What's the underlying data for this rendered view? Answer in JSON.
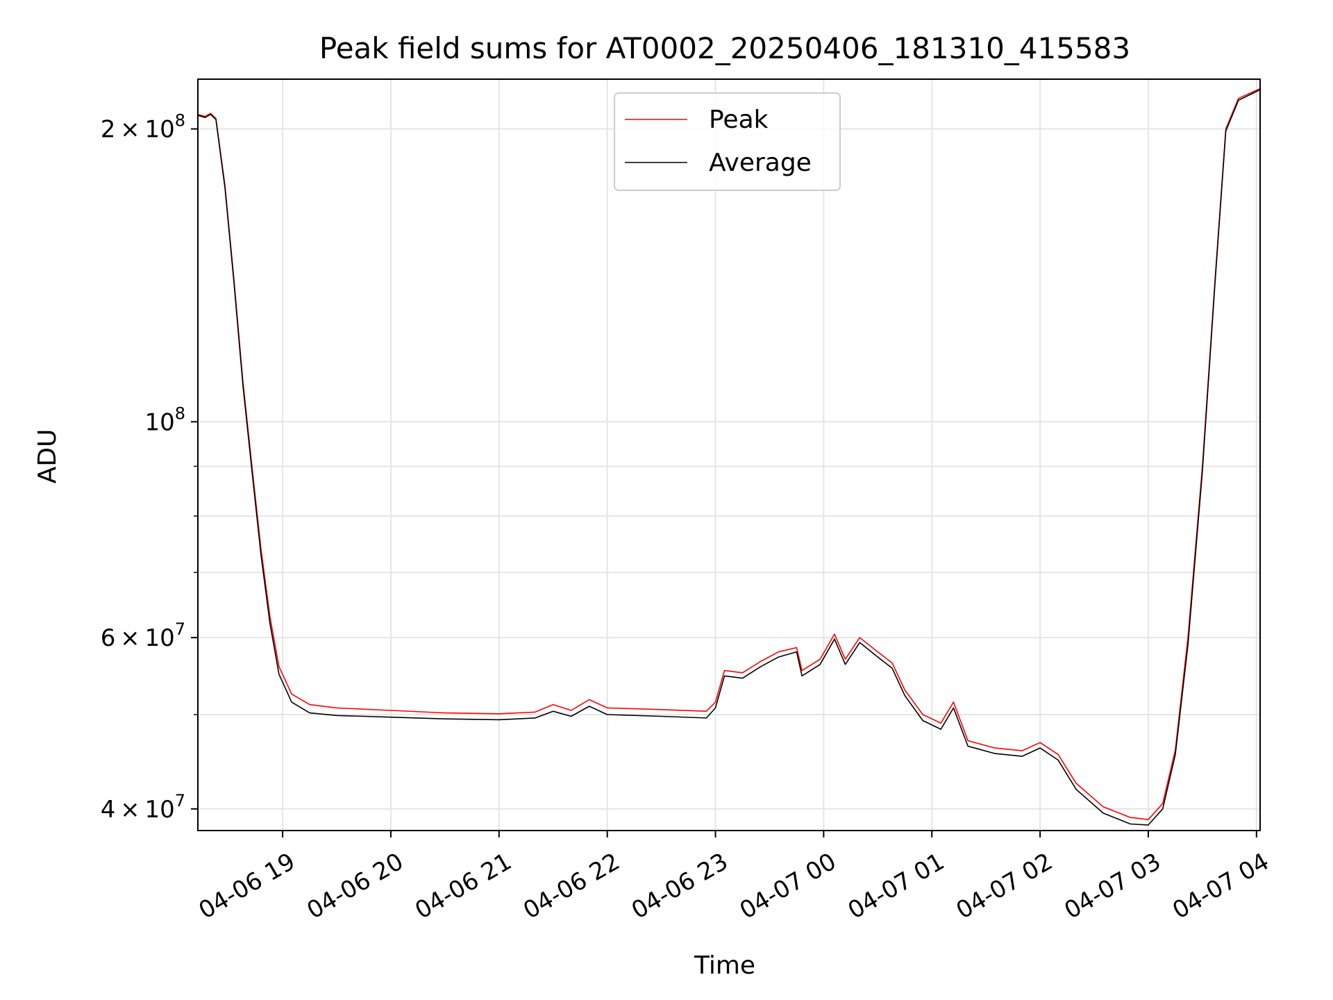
{
  "chart_data": {
    "type": "line",
    "title": "Peak field sums for AT0002_20250406_181310_415583",
    "xlabel": "Time",
    "ylabel": "ADU",
    "y_scale": "log",
    "grid": true,
    "legend_position": "upper center",
    "x_range": [
      "2025-04-06 18:13",
      "2025-04-07 04:02"
    ],
    "ylim": [
      38000000,
      225000000
    ],
    "x_ticks": [
      "2025-04-06 19:00",
      "2025-04-06 20:00",
      "2025-04-06 21:00",
      "2025-04-06 22:00",
      "2025-04-06 23:00",
      "2025-04-07 00:00",
      "2025-04-07 01:00",
      "2025-04-07 02:00",
      "2025-04-07 03:00",
      "2025-04-07 04:00"
    ],
    "x_tick_labels": [
      "04-06 19",
      "04-06 20",
      "04-06 21",
      "04-06 22",
      "04-06 23",
      "04-07 00",
      "04-07 01",
      "04-07 02",
      "04-07 03",
      "04-07 04"
    ],
    "y_major_ticks": [
      {
        "value": 40000000,
        "mantissa": "4",
        "exp": "7"
      },
      {
        "value": 60000000,
        "mantissa": "6",
        "exp": "7"
      },
      {
        "value": 100000000,
        "mantissa": "",
        "exp": "8"
      },
      {
        "value": 200000000,
        "mantissa": "2",
        "exp": "8"
      }
    ],
    "y_minor_ticks": [
      50000000,
      70000000,
      80000000,
      90000000
    ],
    "series": [
      {
        "name": "Peak",
        "color": "#ff0000",
        "points": [
          [
            "2025-04-06 18:13",
            207000000
          ],
          [
            "2025-04-06 18:17",
            206000000
          ],
          [
            "2025-04-06 18:20",
            207500000
          ],
          [
            "2025-04-06 18:23",
            205000000
          ],
          [
            "2025-04-06 18:28",
            175000000
          ],
          [
            "2025-04-06 18:33",
            140000000
          ],
          [
            "2025-04-06 18:38",
            110000000
          ],
          [
            "2025-04-06 18:43",
            90000000
          ],
          [
            "2025-04-06 18:48",
            74000000
          ],
          [
            "2025-04-06 18:53",
            63000000
          ],
          [
            "2025-04-06 18:58",
            56000000
          ],
          [
            "2025-04-06 19:05",
            52500000
          ],
          [
            "2025-04-06 19:15",
            51200000
          ],
          [
            "2025-04-06 19:30",
            50800000
          ],
          [
            "2025-04-06 20:00",
            50500000
          ],
          [
            "2025-04-06 20:30",
            50200000
          ],
          [
            "2025-04-06 21:00",
            50100000
          ],
          [
            "2025-04-06 21:20",
            50300000
          ],
          [
            "2025-04-06 21:30",
            51200000
          ],
          [
            "2025-04-06 21:40",
            50500000
          ],
          [
            "2025-04-06 21:50",
            51800000
          ],
          [
            "2025-04-06 22:00",
            50800000
          ],
          [
            "2025-04-06 22:30",
            50600000
          ],
          [
            "2025-04-06 22:55",
            50400000
          ],
          [
            "2025-04-06 23:00",
            51500000
          ],
          [
            "2025-04-06 23:05",
            55500000
          ],
          [
            "2025-04-06 23:15",
            55200000
          ],
          [
            "2025-04-06 23:25",
            56700000
          ],
          [
            "2025-04-06 23:35",
            58000000
          ],
          [
            "2025-04-06 23:45",
            58600000
          ],
          [
            "2025-04-06 23:48",
            55500000
          ],
          [
            "2025-04-06 23:58",
            57000000
          ],
          [
            "2025-04-07 00:06",
            60500000
          ],
          [
            "2025-04-07 00:12",
            57000000
          ],
          [
            "2025-04-07 00:20",
            60000000
          ],
          [
            "2025-04-07 00:30",
            58000000
          ],
          [
            "2025-04-07 00:38",
            56500000
          ],
          [
            "2025-04-07 00:45",
            53000000
          ],
          [
            "2025-04-07 00:55",
            50000000
          ],
          [
            "2025-04-07 01:05",
            49000000
          ],
          [
            "2025-04-07 01:12",
            51500000
          ],
          [
            "2025-04-07 01:20",
            47000000
          ],
          [
            "2025-04-07 01:35",
            46200000
          ],
          [
            "2025-04-07 01:50",
            45900000
          ],
          [
            "2025-04-07 02:00",
            46800000
          ],
          [
            "2025-04-07 02:10",
            45500000
          ],
          [
            "2025-04-07 02:20",
            42500000
          ],
          [
            "2025-04-07 02:35",
            40200000
          ],
          [
            "2025-04-07 02:50",
            39200000
          ],
          [
            "2025-04-07 03:00",
            39000000
          ],
          [
            "2025-04-07 03:08",
            40500000
          ],
          [
            "2025-04-07 03:15",
            46000000
          ],
          [
            "2025-04-07 03:22",
            60000000
          ],
          [
            "2025-04-07 03:30",
            90000000
          ],
          [
            "2025-04-07 03:37",
            140000000
          ],
          [
            "2025-04-07 03:43",
            200000000
          ],
          [
            "2025-04-07 03:50",
            215000000
          ],
          [
            "2025-04-07 04:02",
            220000000
          ]
        ]
      },
      {
        "name": "Average",
        "color": "#000000",
        "points": [
          [
            "2025-04-06 18:13",
            206500000
          ],
          [
            "2025-04-06 18:17",
            205500000
          ],
          [
            "2025-04-06 18:20",
            207000000
          ],
          [
            "2025-04-06 18:23",
            204500000
          ],
          [
            "2025-04-06 18:28",
            174000000
          ],
          [
            "2025-04-06 18:33",
            139000000
          ],
          [
            "2025-04-06 18:38",
            109000000
          ],
          [
            "2025-04-06 18:43",
            89000000
          ],
          [
            "2025-04-06 18:48",
            73000000
          ],
          [
            "2025-04-06 18:53",
            62000000
          ],
          [
            "2025-04-06 18:58",
            55000000
          ],
          [
            "2025-04-06 19:05",
            51500000
          ],
          [
            "2025-04-06 19:15",
            50200000
          ],
          [
            "2025-04-06 19:30",
            49900000
          ],
          [
            "2025-04-06 20:00",
            49700000
          ],
          [
            "2025-04-06 20:30",
            49500000
          ],
          [
            "2025-04-06 21:00",
            49400000
          ],
          [
            "2025-04-06 21:20",
            49600000
          ],
          [
            "2025-04-06 21:30",
            50400000
          ],
          [
            "2025-04-06 21:40",
            49800000
          ],
          [
            "2025-04-06 21:50",
            51000000
          ],
          [
            "2025-04-06 22:00",
            50000000
          ],
          [
            "2025-04-06 22:30",
            49800000
          ],
          [
            "2025-04-06 22:55",
            49600000
          ],
          [
            "2025-04-06 23:00",
            50800000
          ],
          [
            "2025-04-06 23:05",
            54800000
          ],
          [
            "2025-04-06 23:15",
            54500000
          ],
          [
            "2025-04-06 23:25",
            56000000
          ],
          [
            "2025-04-06 23:35",
            57300000
          ],
          [
            "2025-04-06 23:45",
            58000000
          ],
          [
            "2025-04-06 23:48",
            54800000
          ],
          [
            "2025-04-06 23:58",
            56300000
          ],
          [
            "2025-04-07 00:06",
            59800000
          ],
          [
            "2025-04-07 00:12",
            56300000
          ],
          [
            "2025-04-07 00:20",
            59300000
          ],
          [
            "2025-04-07 00:30",
            57300000
          ],
          [
            "2025-04-07 00:38",
            55800000
          ],
          [
            "2025-04-07 00:45",
            52300000
          ],
          [
            "2025-04-07 00:55",
            49300000
          ],
          [
            "2025-04-07 01:05",
            48300000
          ],
          [
            "2025-04-07 01:12",
            50800000
          ],
          [
            "2025-04-07 01:20",
            46400000
          ],
          [
            "2025-04-07 01:35",
            45600000
          ],
          [
            "2025-04-07 01:50",
            45300000
          ],
          [
            "2025-04-07 02:00",
            46200000
          ],
          [
            "2025-04-07 02:10",
            44900000
          ],
          [
            "2025-04-07 02:20",
            41900000
          ],
          [
            "2025-04-07 02:35",
            39600000
          ],
          [
            "2025-04-07 02:50",
            38600000
          ],
          [
            "2025-04-07 03:00",
            38500000
          ],
          [
            "2025-04-07 03:08",
            40000000
          ],
          [
            "2025-04-07 03:15",
            45500000
          ],
          [
            "2025-04-07 03:22",
            59000000
          ],
          [
            "2025-04-07 03:30",
            89000000
          ],
          [
            "2025-04-07 03:37",
            139000000
          ],
          [
            "2025-04-07 03:43",
            199000000
          ],
          [
            "2025-04-07 03:50",
            214000000
          ],
          [
            "2025-04-07 04:02",
            219500000
          ]
        ]
      }
    ]
  }
}
